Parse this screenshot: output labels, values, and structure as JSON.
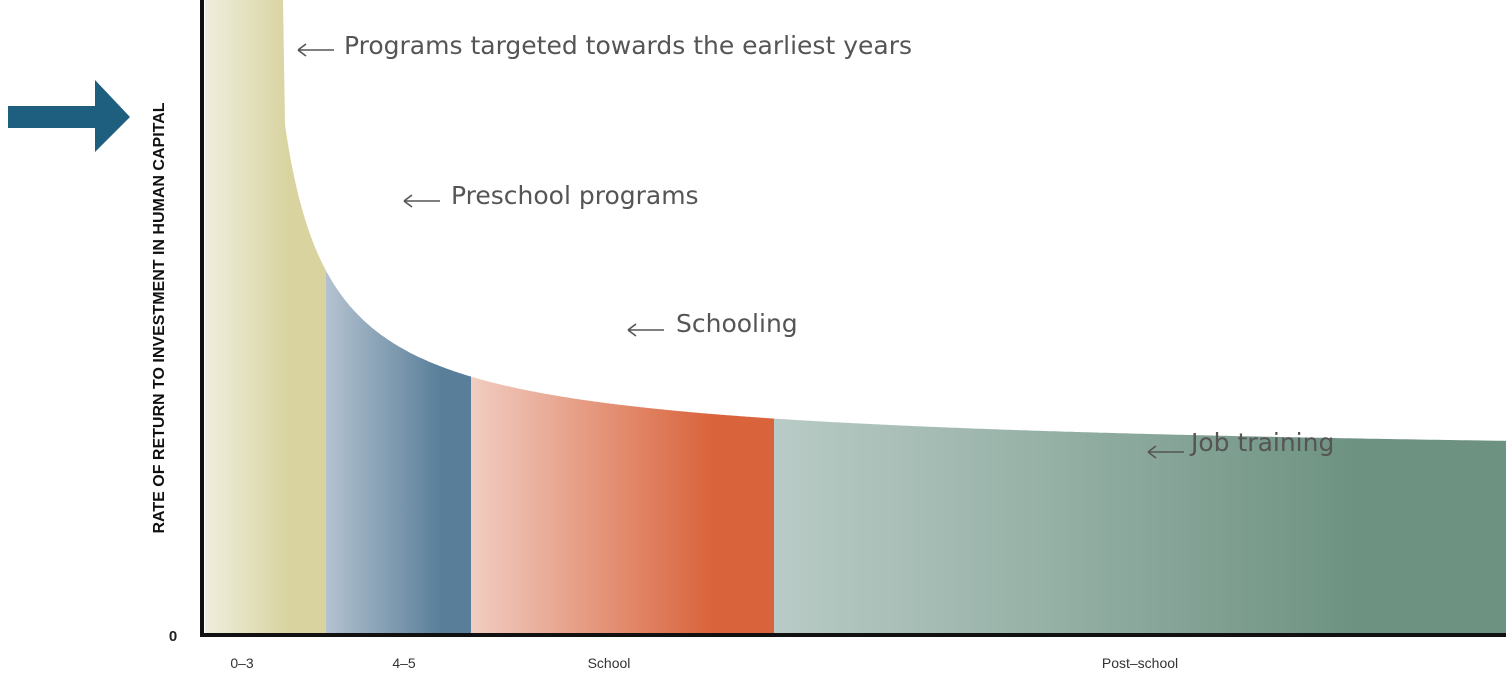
{
  "chart_data": {
    "type": "area",
    "ylabel": "RATE OF RETURN TO INVESTMENT IN HUMAN CAPITAL",
    "y_origin_label": "0",
    "categories": [
      "0–3",
      "4–5",
      "School",
      "Post–school"
    ],
    "segments": [
      {
        "label": "0–3",
        "colors": [
          "#efeedd",
          "#d8d39f"
        ]
      },
      {
        "label": "4–5",
        "colors": [
          "#b4c2d0",
          "#587e99"
        ]
      },
      {
        "label": "School",
        "colors": [
          "#f1cdc2",
          "#d9633b"
        ]
      },
      {
        "label": "Post–school",
        "colors": [
          "#b9cbc6",
          "#6d9281"
        ]
      }
    ],
    "annotations": [
      "Programs targeted towards the earliest years",
      "Preschool programs",
      "Schooling",
      "Job training"
    ],
    "grid": false,
    "legend": "none"
  },
  "accent": {
    "arrow_color": "#1e5f80"
  }
}
